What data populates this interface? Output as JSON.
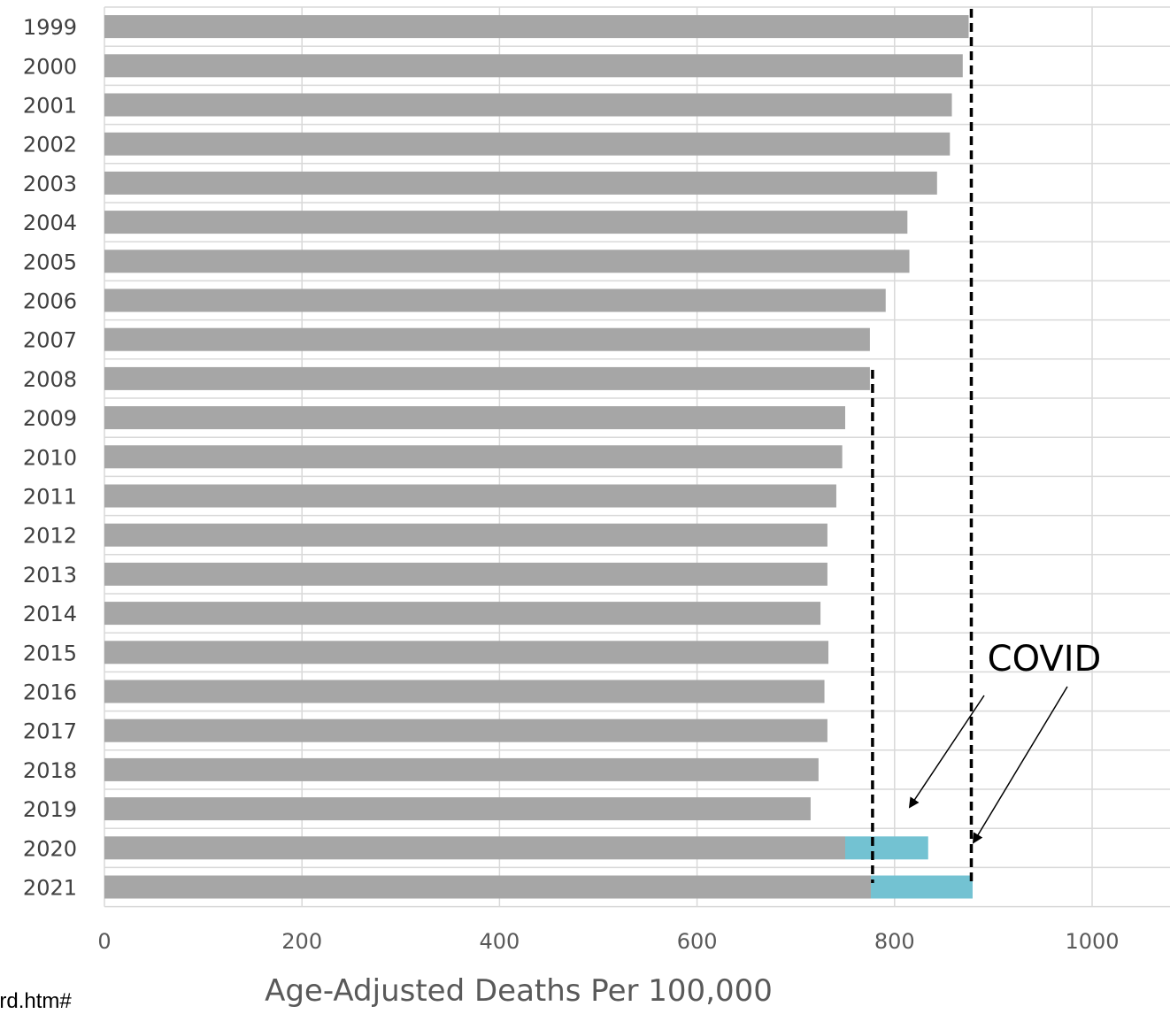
{
  "chart_data": {
    "type": "bar",
    "orientation": "horizontal",
    "stacked": true,
    "categories": [
      "1999",
      "2000",
      "2001",
      "2002",
      "2003",
      "2004",
      "2005",
      "2006",
      "2007",
      "2008",
      "2009",
      "2010",
      "2011",
      "2012",
      "2013",
      "2014",
      "2015",
      "2016",
      "2017",
      "2018",
      "2019",
      "2020",
      "2021"
    ],
    "series": [
      {
        "values": [
          875,
          869,
          858,
          856,
          843,
          813,
          815,
          791,
          775,
          775,
          750,
          747,
          741,
          732,
          732,
          725,
          733,
          729,
          732,
          723,
          715,
          750,
          776
        ],
        "color": "#a6a6a6"
      },
      {
        "values": [
          0,
          0,
          0,
          0,
          0,
          0,
          0,
          0,
          0,
          0,
          0,
          0,
          0,
          0,
          0,
          0,
          0,
          0,
          0,
          0,
          0,
          84,
          103
        ],
        "color": "#73c2d2"
      }
    ],
    "xlabel": "Age-Adjusted Deaths Per 100,000",
    "xlim": [
      0,
      1080
    ],
    "xticks": [
      0,
      200,
      400,
      600,
      800,
      1000
    ],
    "grid": true,
    "reference_lines": [
      775,
      875
    ],
    "annotation": "COVID"
  },
  "footnote": "ard.htm#"
}
